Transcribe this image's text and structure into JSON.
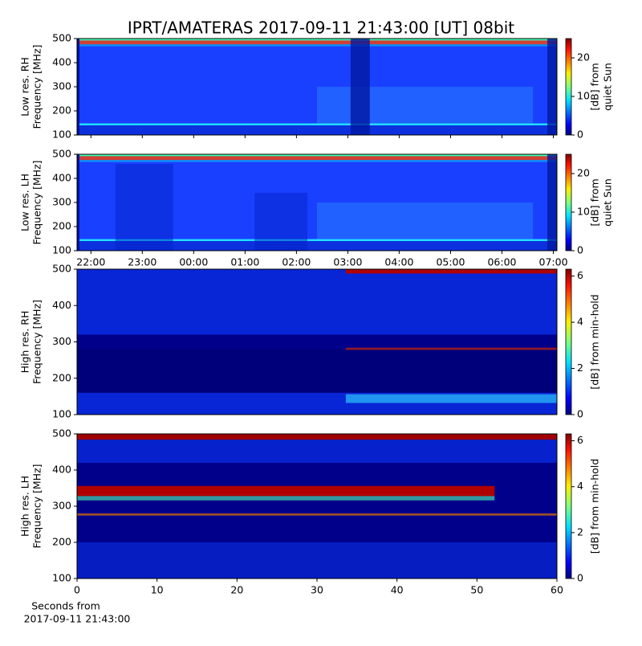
{
  "chart_data": [
    {
      "type": "heatmap",
      "title": "IPRT/AMATERAS 2017-09-11 21:43:00 [UT]   08bit",
      "ylabel": [
        "Low res. RH",
        "Frequency [MHz]"
      ],
      "ylim": [
        100,
        500
      ],
      "yticks": [
        100,
        200,
        300,
        400,
        500
      ],
      "colorbar_label": [
        "[dB] from",
        "quiet Sun"
      ],
      "clim": [
        0,
        25
      ],
      "cticks": [
        0,
        10,
        20
      ],
      "colormap": "jet"
    },
    {
      "type": "heatmap",
      "ylabel": [
        "Low res. LH",
        "Frequency [MHz]"
      ],
      "ylim": [
        100,
        500
      ],
      "yticks": [
        100,
        200,
        300,
        400,
        500
      ],
      "xlim": [
        21.73,
        31.07
      ],
      "xticks": [
        {
          "value": 22,
          "label": "22:00"
        },
        {
          "value": 23,
          "label": "23:00"
        },
        {
          "value": 24,
          "label": "00:00"
        },
        {
          "value": 25,
          "label": "01:00"
        },
        {
          "value": 26,
          "label": "02:00"
        },
        {
          "value": 27,
          "label": "03:00"
        },
        {
          "value": 28,
          "label": "04:00"
        },
        {
          "value": 29,
          "label": "05:00"
        },
        {
          "value": 30,
          "label": "06:00"
        },
        {
          "value": 31,
          "label": "07:00"
        }
      ],
      "colorbar_label": [
        "[dB] from",
        "quiet Sun"
      ],
      "clim": [
        0,
        25
      ],
      "cticks": [
        0,
        10,
        20
      ],
      "colormap": "jet"
    },
    {
      "type": "heatmap",
      "ylabel": [
        "High res. RH",
        "Frequency [MHz]"
      ],
      "ylim": [
        100,
        500
      ],
      "yticks": [
        100,
        200,
        300,
        400,
        500
      ],
      "colorbar_label": [
        "[dB] from min-hold"
      ],
      "clim": [
        0,
        6.3
      ],
      "cticks": [
        0,
        2,
        4,
        6
      ],
      "colormap": "jet"
    },
    {
      "type": "heatmap",
      "ylabel": [
        "High res. LH",
        "Frequency [MHz]"
      ],
      "ylim": [
        100,
        500
      ],
      "yticks": [
        100,
        200,
        300,
        400,
        500
      ],
      "xlabel": [
        "Seconds from",
        "2017-09-11 21:43:00"
      ],
      "xlim": [
        0,
        60
      ],
      "xticks": [
        0,
        10,
        20,
        30,
        40,
        50,
        60
      ],
      "colorbar_label": [
        "[dB] from min-hold"
      ],
      "clim": [
        0,
        6.3
      ],
      "cticks": [
        0,
        2,
        4,
        6
      ],
      "colormap": "jet"
    }
  ]
}
